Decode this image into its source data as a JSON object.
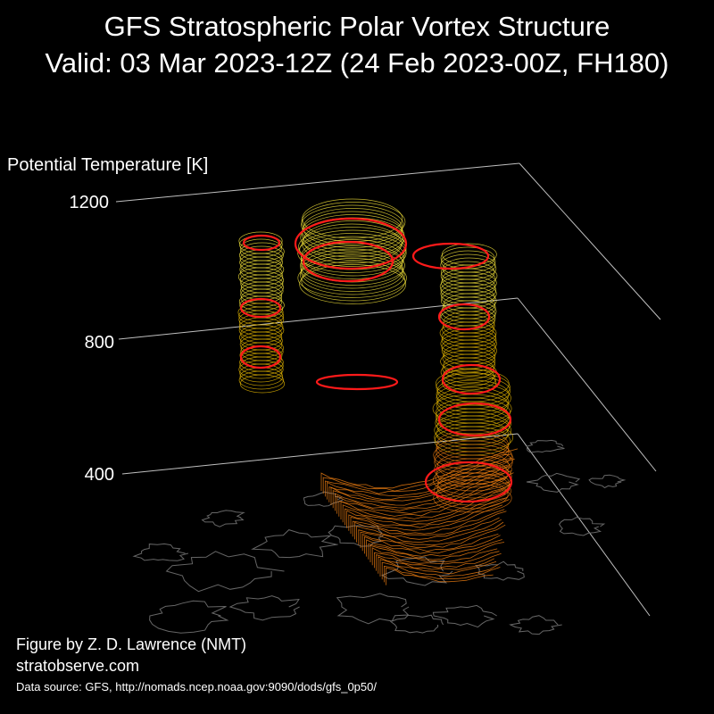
{
  "header": {
    "title": "GFS Stratospheric Polar Vortex Structure",
    "subtitle": "Valid: 03 Mar 2023-12Z  (24 Feb 2023-00Z, FH180)"
  },
  "footer": {
    "credit": "Figure by Z. D. Lawrence (NMT)",
    "website": "stratobserve.com",
    "source": "Data source: GFS, http://nomads.ncep.noaa.gov:9090/dods/gfs_0p50/"
  },
  "chart_data": {
    "type": "3d-isosurface",
    "zlabel": "Potential Temperature [K]",
    "z_ticks": [
      "1200",
      "800",
      "400"
    ],
    "z_tick_values": [
      1200,
      800,
      400
    ],
    "zlim": [
      350,
      1200
    ],
    "colors": {
      "low_level": "#e87a10",
      "mid_level": "#e6b800",
      "high_level": "#f2e23a",
      "vortex_edge": "#ff1a1a",
      "coastline": "#666666",
      "axis": "#bfbfbf"
    }
  }
}
